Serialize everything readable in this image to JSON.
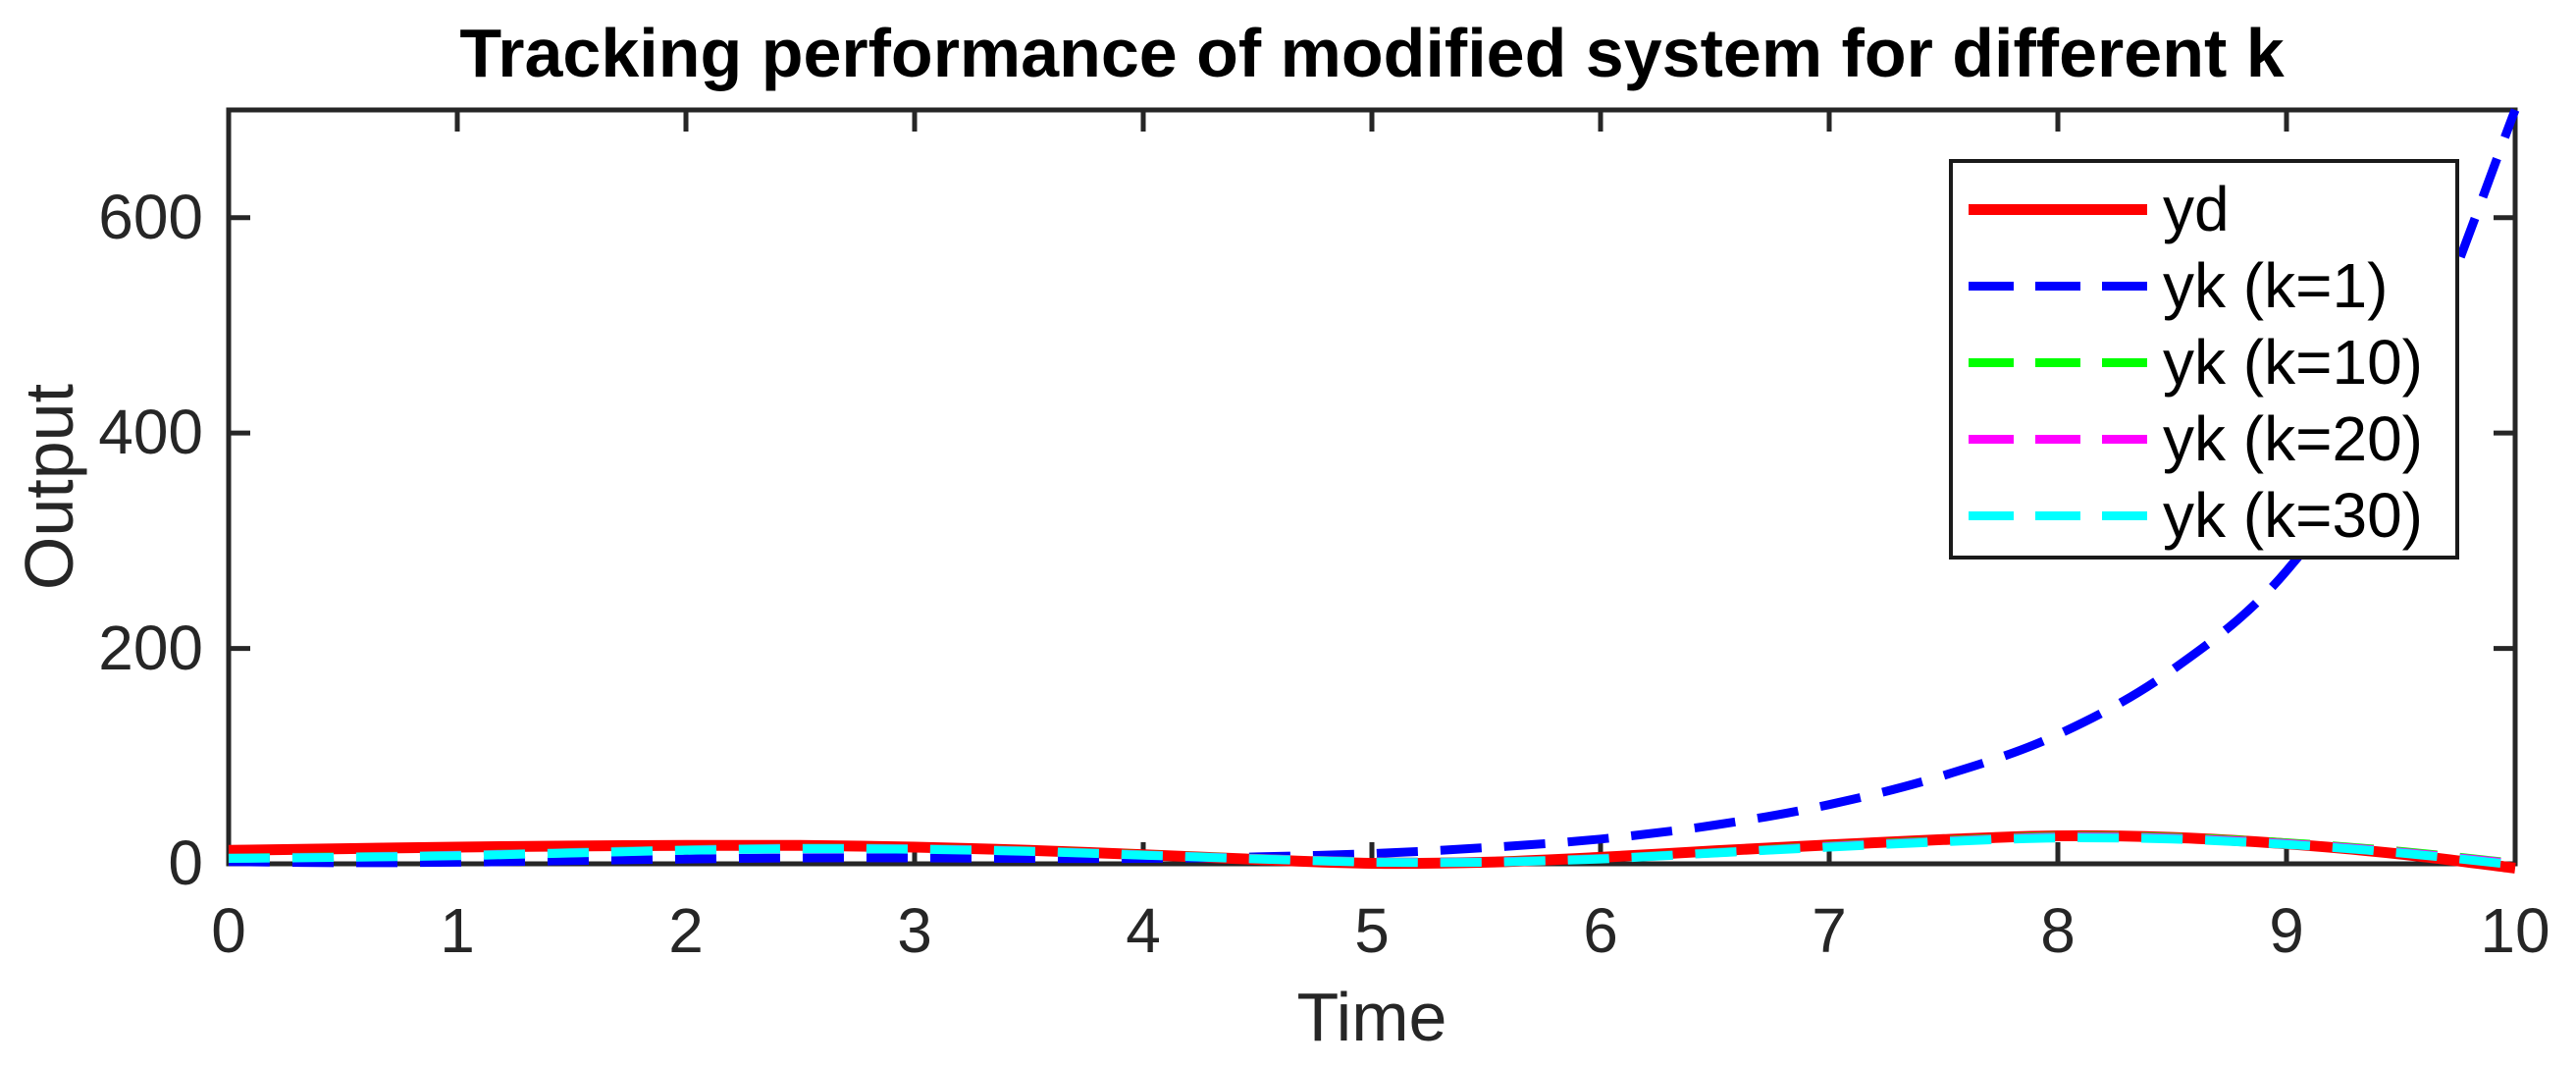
{
  "figure": {
    "background": "#ffffff",
    "axis_color": "#262626",
    "tick_label_color": "#262626",
    "title_color": "#000000",
    "legend_border_color": "#1a1a1a"
  },
  "chart_data": {
    "type": "line",
    "title": "Tracking performance of modified system for different k",
    "xlabel": "Time",
    "ylabel": "Output",
    "xlim": [
      0,
      10
    ],
    "ylim": [
      0,
      700
    ],
    "grid": false,
    "legend_position": "northeast",
    "x_ticks": [
      "0",
      "1",
      "2",
      "3",
      "4",
      "5",
      "6",
      "7",
      "8",
      "9",
      "10"
    ],
    "x_tick_values": [
      0,
      1,
      2,
      3,
      4,
      5,
      6,
      7,
      8,
      9,
      10
    ],
    "y_ticks": [
      "0",
      "200",
      "400",
      "600"
    ],
    "y_tick_values": [
      0,
      200,
      400,
      600
    ],
    "x": [
      0,
      0.5,
      1,
      1.5,
      2,
      2.5,
      3,
      3.5,
      4,
      4.5,
      5,
      5.5,
      6,
      6.5,
      7,
      7.5,
      8,
      8.5,
      9,
      9.5,
      10
    ],
    "series": [
      {
        "name": "yd",
        "color": "#ff0000",
        "line_style": "solid",
        "line_width": 11,
        "values": [
          12.5,
          14,
          15.5,
          16.5,
          17,
          17,
          15.5,
          12.5,
          8.5,
          4,
          0.5,
          1.5,
          6,
          12,
          17.5,
          22.5,
          26,
          24.5,
          18.5,
          9,
          -4
        ]
      },
      {
        "name": "yk (k=1)",
        "color": "#0000ff",
        "line_style": "dashed",
        "line_width": 9,
        "values": [
          2,
          1,
          1.5,
          3,
          4.5,
          5.5,
          5.5,
          5,
          5,
          6.5,
          9.5,
          15,
          23,
          36,
          55,
          82,
          120,
          180,
          272,
          430,
          700
        ]
      },
      {
        "name": "yk (k=10)",
        "color": "#00ff00",
        "line_style": "dashed",
        "line_width": 9,
        "values": [
          5.5,
          6.5,
          8,
          10.5,
          13,
          14.5,
          14,
          12,
          8.5,
          5,
          2,
          2,
          5,
          10.5,
          16.5,
          21.5,
          25.5,
          24.5,
          19.5,
          11.5,
          0.5
        ]
      },
      {
        "name": "yk (k=20)",
        "color": "#ff00ff",
        "line_style": "dashed",
        "line_width": 9,
        "values": [
          5.2,
          6.2,
          7.8,
          10.2,
          12.8,
          14.2,
          13.8,
          11.8,
          8.2,
          4.8,
          1.8,
          1.8,
          4.8,
          10.2,
          16,
          21,
          24.8,
          23.8,
          18.8,
          10.8,
          0
        ]
      },
      {
        "name": "yk (k=30)",
        "color": "#00ffff",
        "line_style": "dashed",
        "line_width": 9,
        "values": [
          5,
          6,
          7.5,
          10,
          12.5,
          14,
          13.5,
          11.5,
          8,
          4.5,
          1.5,
          1.5,
          4.5,
          10,
          15.5,
          20.5,
          24,
          23,
          18,
          10,
          -1
        ]
      }
    ]
  }
}
